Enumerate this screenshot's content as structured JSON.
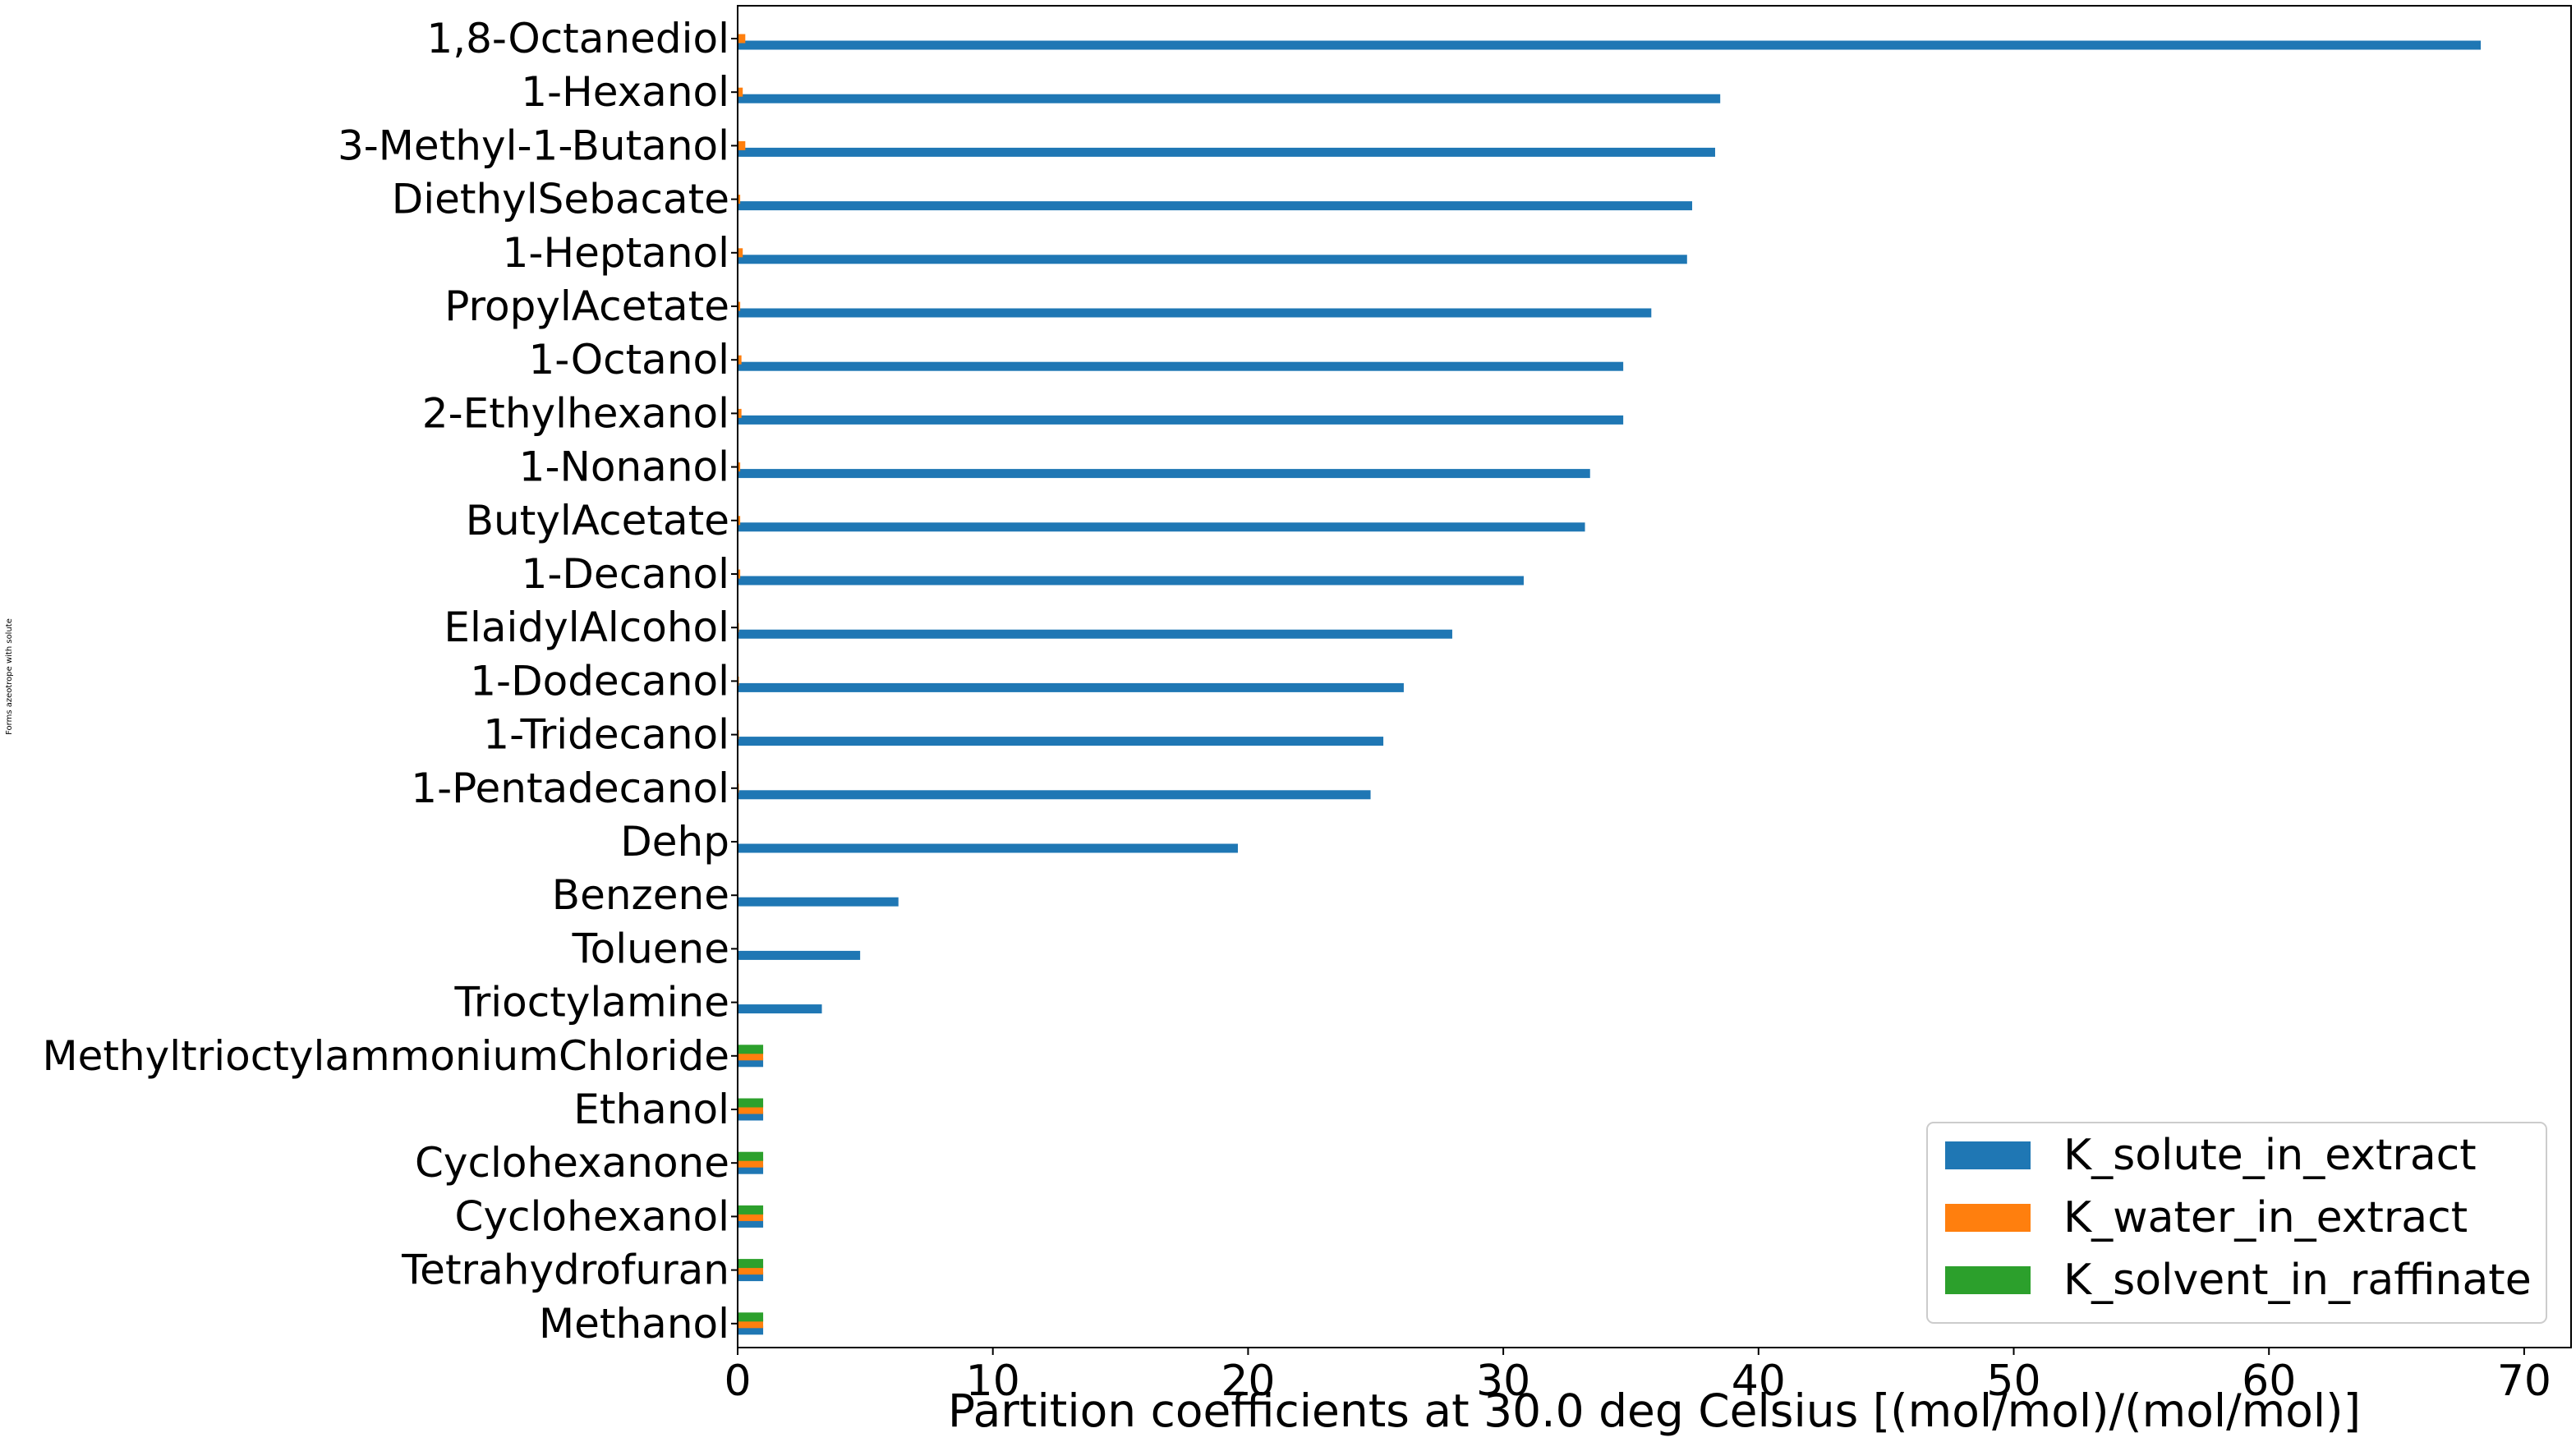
{
  "chart_data": {
    "type": "bar",
    "orientation": "horizontal",
    "categories": [
      "1,8-Octanediol",
      "1-Hexanol",
      "3-Methyl-1-Butanol",
      "DiethylSebacate",
      "1-Heptanol",
      "PropylAcetate",
      "1-Octanol",
      "2-Ethylhexanol",
      "1-Nonanol",
      "ButylAcetate",
      "1-Decanol",
      "ElaidylAlcohol",
      "1-Dodecanol",
      "1-Tridecanol",
      "1-Pentadecanol",
      "Dehp",
      "Benzene",
      "Toluene",
      "Trioctylamine",
      "MethyltrioctylammoniumChloride",
      "Ethanol",
      "Cyclohexanone",
      "Cyclohexanol",
      "Tetrahydrofuran",
      "Methanol"
    ],
    "series": [
      {
        "name": "K_solute_in_extract",
        "color": "#1f77b4",
        "values": [
          68.3,
          38.5,
          38.3,
          37.4,
          37.2,
          35.8,
          34.7,
          34.7,
          33.4,
          33.2,
          30.8,
          28.0,
          26.1,
          25.3,
          24.8,
          19.6,
          6.3,
          4.8,
          3.3,
          1.0,
          1.0,
          1.0,
          1.0,
          1.0,
          1.0
        ]
      },
      {
        "name": "K_water_in_extract",
        "color": "#ff7f0e",
        "values": [
          0.3,
          0.2,
          0.3,
          0.1,
          0.2,
          0.1,
          0.15,
          0.15,
          0.1,
          0.1,
          0.1,
          0.05,
          0.05,
          0.05,
          0.05,
          0.02,
          0.02,
          0.02,
          0.02,
          1.0,
          1.0,
          1.0,
          1.0,
          1.0,
          1.0
        ]
      },
      {
        "name": "K_solvent_in_raffinate",
        "color": "#2ca02c",
        "values": [
          0,
          0,
          0,
          0,
          0,
          0,
          0,
          0,
          0,
          0,
          0,
          0,
          0,
          0,
          0,
          0,
          0,
          0,
          0,
          1.0,
          1.0,
          1.0,
          1.0,
          1.0,
          1.0
        ]
      }
    ],
    "xlim": [
      0,
      72
    ],
    "xticks": [
      0,
      10,
      20,
      30,
      40,
      50,
      60,
      70
    ],
    "xlabel": "Partition coefficients at 30.0 deg Celsius [(mol/mol)/(mol/mol)]",
    "ylabel": "Forms azeotrope with solute",
    "legend_placement": "lower-right",
    "grid": false
  }
}
